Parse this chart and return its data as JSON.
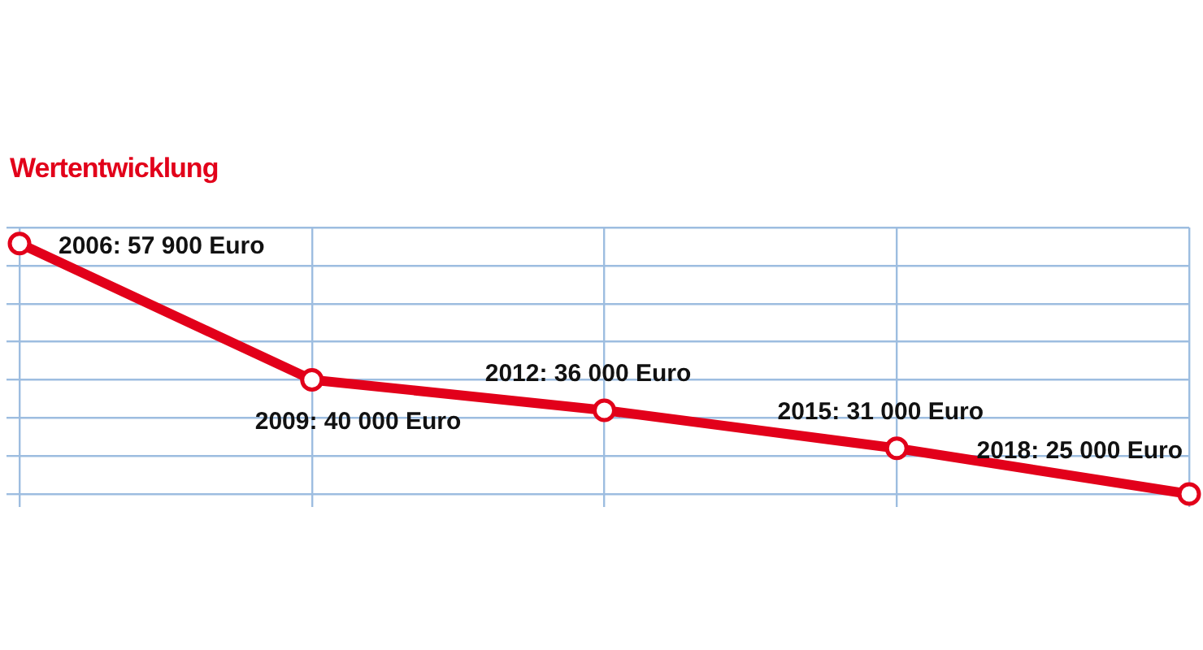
{
  "chart_data": {
    "type": "line",
    "title": "Wertentwicklung",
    "categories": [
      null,
      null,
      null,
      null,
      null
    ],
    "series": [
      {
        "color": "#e2001a",
        "values": [
          57900,
          40000,
          36000,
          31000,
          25000
        ],
        "value_labels": [
          "2006: 57 900 Euro",
          "2009: 40 000 Euro",
          "2012: 36 000 Euro",
          "2015: 31 000 Euro",
          "2018: 25 000 Euro"
        ]
      }
    ],
    "grid": true,
    "tick_labels": false,
    "legend": false,
    "marker": "circle",
    "line_style": "solid"
  }
}
